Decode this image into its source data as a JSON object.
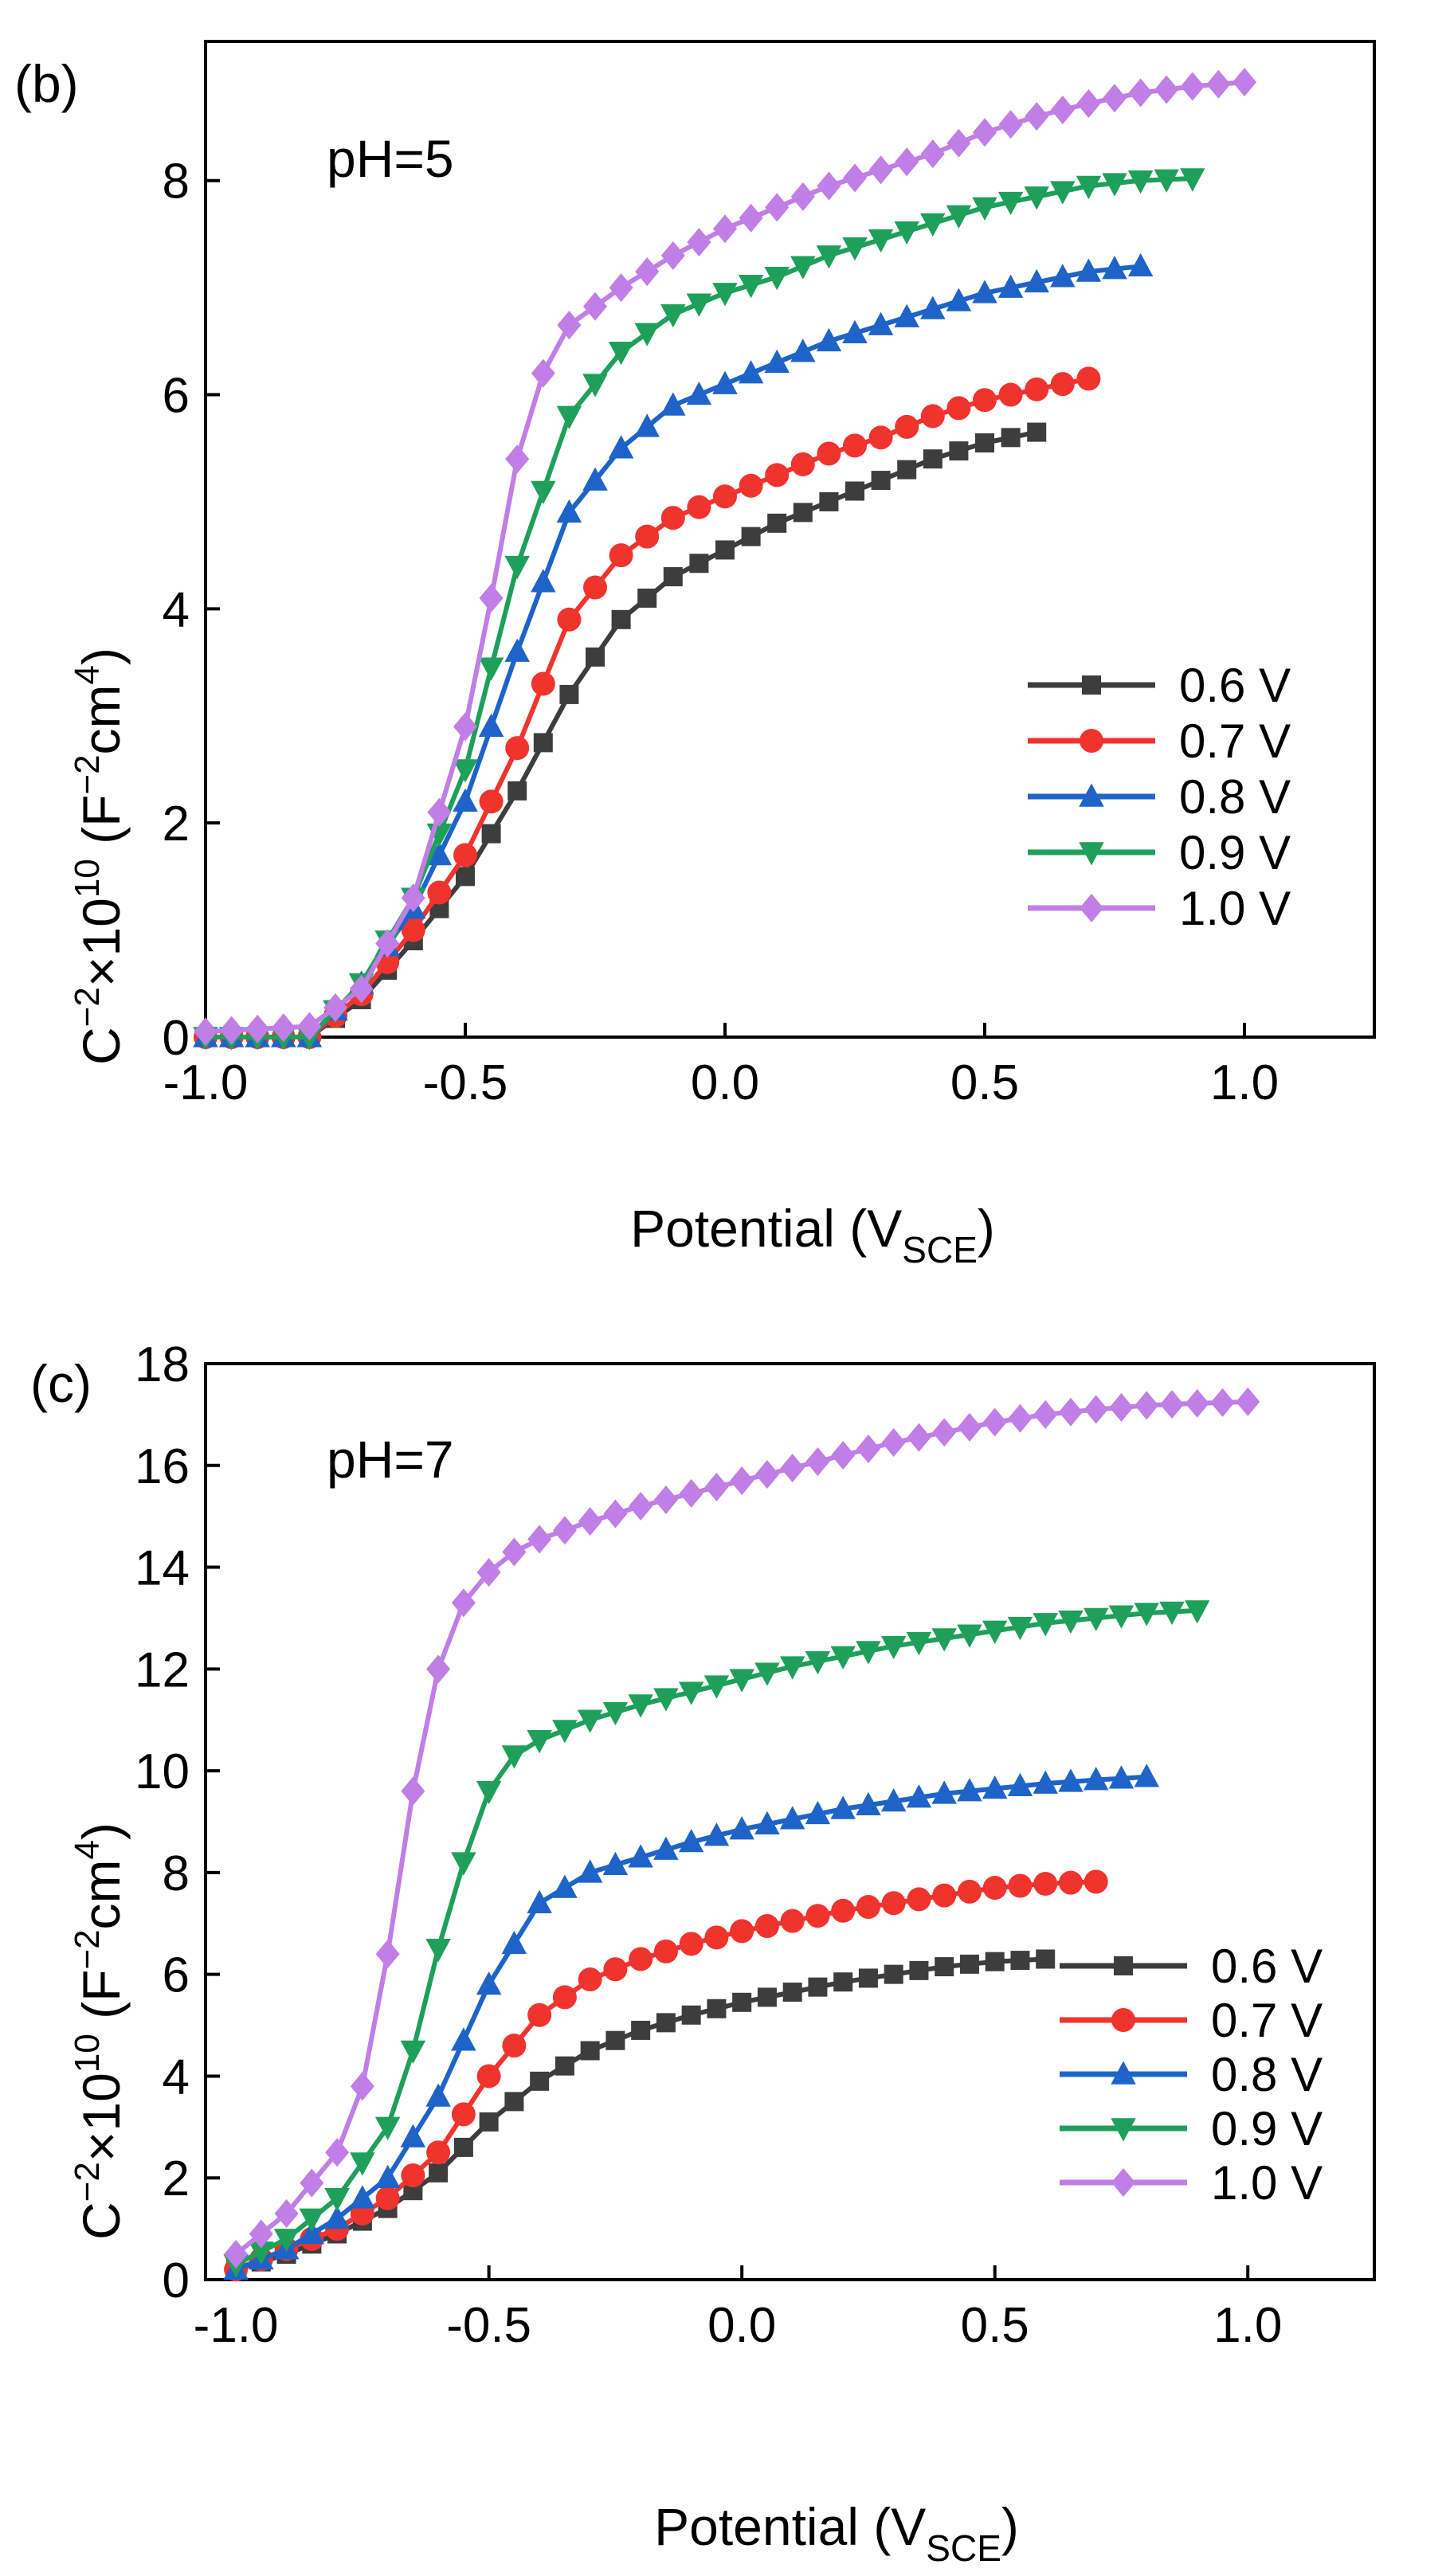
{
  "chart_data": [
    {
      "type": "line",
      "panel_label": "(b)",
      "annotation": "pH=5",
      "xlabel": "Potential (V",
      "xlabel_sub": "SCE",
      "xlabel_end": ")",
      "ylabel_base": "C",
      "ylabel_exp1": "−2",
      "ylabel_mid": "×10",
      "ylabel_exp2": "10",
      "ylabel_unit_open": " (F",
      "ylabel_exp3": "−2",
      "ylabel_unit_mid": "cm",
      "ylabel_exp4": "4",
      "ylabel_unit_close": ")",
      "xlim": [
        -1.0,
        1.25
      ],
      "ylim": [
        0,
        9.3
      ],
      "xticks": [
        -1.0,
        -0.5,
        0.0,
        0.5,
        1.0
      ],
      "xtick_labels": [
        "-1.0",
        "-0.5",
        "0.0",
        "0.5",
        "1.0"
      ],
      "yticks": [
        0,
        2,
        4,
        6,
        8
      ],
      "ytick_labels": [
        "0",
        "2",
        "4",
        "6",
        "8"
      ],
      "legend_position": "bottom-right",
      "series": [
        {
          "name": "0.6 V",
          "color": "#3d3d3d",
          "marker": "square",
          "end": 0.6,
          "points": [
            [
              -1.0,
              0
            ],
            [
              -0.8,
              0
            ],
            [
              -0.7,
              0.35
            ],
            [
              -0.6,
              0.9
            ],
            [
              -0.5,
              1.5
            ],
            [
              -0.4,
              2.3
            ],
            [
              -0.3,
              3.2
            ],
            [
              -0.2,
              3.9
            ],
            [
              -0.1,
              4.3
            ],
            [
              0.0,
              4.55
            ],
            [
              0.1,
              4.8
            ],
            [
              0.2,
              5.0
            ],
            [
              0.3,
              5.2
            ],
            [
              0.4,
              5.4
            ],
            [
              0.5,
              5.55
            ],
            [
              0.6,
              5.65
            ]
          ]
        },
        {
          "name": "0.7 V",
          "color": "#f0332d",
          "marker": "circle",
          "end": 0.7,
          "points": [
            [
              -1.0,
              0
            ],
            [
              -0.8,
              0
            ],
            [
              -0.7,
              0.4
            ],
            [
              -0.6,
              1.0
            ],
            [
              -0.5,
              1.7
            ],
            [
              -0.4,
              2.7
            ],
            [
              -0.3,
              3.9
            ],
            [
              -0.2,
              4.5
            ],
            [
              -0.1,
              4.85
            ],
            [
              0.0,
              5.05
            ],
            [
              0.1,
              5.25
            ],
            [
              0.2,
              5.45
            ],
            [
              0.3,
              5.6
            ],
            [
              0.4,
              5.8
            ],
            [
              0.5,
              5.95
            ],
            [
              0.6,
              6.05
            ],
            [
              0.7,
              6.15
            ]
          ]
        },
        {
          "name": "0.8 V",
          "color": "#1e64c8",
          "marker": "triangle-up",
          "end": 0.8,
          "points": [
            [
              -1.0,
              0
            ],
            [
              -0.8,
              0
            ],
            [
              -0.7,
              0.5
            ],
            [
              -0.6,
              1.2
            ],
            [
              -0.5,
              2.2
            ],
            [
              -0.4,
              3.6
            ],
            [
              -0.3,
              4.9
            ],
            [
              -0.2,
              5.5
            ],
            [
              -0.1,
              5.9
            ],
            [
              0.0,
              6.1
            ],
            [
              0.1,
              6.3
            ],
            [
              0.2,
              6.5
            ],
            [
              0.3,
              6.65
            ],
            [
              0.4,
              6.8
            ],
            [
              0.5,
              6.95
            ],
            [
              0.6,
              7.05
            ],
            [
              0.7,
              7.15
            ],
            [
              0.8,
              7.2
            ]
          ]
        },
        {
          "name": "0.9 V",
          "color": "#1ea05a",
          "marker": "triangle-down",
          "end": 0.9,
          "points": [
            [
              -1.0,
              0
            ],
            [
              -0.8,
              0
            ],
            [
              -0.7,
              0.5
            ],
            [
              -0.6,
              1.3
            ],
            [
              -0.5,
              2.5
            ],
            [
              -0.4,
              4.4
            ],
            [
              -0.3,
              5.8
            ],
            [
              -0.2,
              6.4
            ],
            [
              -0.1,
              6.75
            ],
            [
              0.0,
              6.95
            ],
            [
              0.1,
              7.1
            ],
            [
              0.2,
              7.3
            ],
            [
              0.3,
              7.45
            ],
            [
              0.4,
              7.6
            ],
            [
              0.5,
              7.75
            ],
            [
              0.6,
              7.85
            ],
            [
              0.7,
              7.95
            ],
            [
              0.8,
              8.0
            ],
            [
              0.9,
              8.02
            ]
          ]
        },
        {
          "name": "1.0 V",
          "color": "#c07ee6",
          "marker": "diamond",
          "end": 1.0,
          "points": [
            [
              -1.0,
              0.05
            ],
            [
              -0.8,
              0.1
            ],
            [
              -0.7,
              0.45
            ],
            [
              -0.6,
              1.3
            ],
            [
              -0.5,
              2.9
            ],
            [
              -0.45,
              4.1
            ],
            [
              -0.4,
              5.4
            ],
            [
              -0.35,
              6.2
            ],
            [
              -0.3,
              6.65
            ],
            [
              -0.2,
              7.0
            ],
            [
              -0.1,
              7.3
            ],
            [
              0.0,
              7.55
            ],
            [
              0.1,
              7.75
            ],
            [
              0.2,
              7.95
            ],
            [
              0.3,
              8.1
            ],
            [
              0.4,
              8.25
            ],
            [
              0.5,
              8.45
            ],
            [
              0.6,
              8.6
            ],
            [
              0.7,
              8.72
            ],
            [
              0.8,
              8.82
            ],
            [
              0.9,
              8.88
            ],
            [
              1.0,
              8.92
            ]
          ]
        }
      ]
    },
    {
      "type": "line",
      "panel_label": "(c)",
      "annotation": "pH=7",
      "xlabel": "Potential (V",
      "xlabel_sub": "SCE",
      "xlabel_end": ")",
      "ylabel_base": "C",
      "ylabel_exp1": "−2",
      "ylabel_mid": "×10",
      "ylabel_exp2": "10",
      "ylabel_unit_open": " (F",
      "ylabel_exp3": "−2",
      "ylabel_unit_mid": "cm",
      "ylabel_exp4": "4",
      "ylabel_unit_close": ")",
      "xlim": [
        -1.06,
        1.25
      ],
      "ylim": [
        0,
        18
      ],
      "xticks": [
        -1.0,
        -0.5,
        0.0,
        0.5,
        1.0
      ],
      "xtick_labels": [
        "-1.0",
        "-0.5",
        "0.0",
        "0.5",
        "1.0"
      ],
      "yticks": [
        0,
        2,
        4,
        6,
        8,
        10,
        12,
        14,
        16,
        18
      ],
      "ytick_labels": [
        "0",
        "2",
        "4",
        "6",
        "8",
        "10",
        "12",
        "14",
        "16",
        "18"
      ],
      "legend_position": "bottom-right",
      "series": [
        {
          "name": "0.6 V",
          "color": "#3d3d3d",
          "marker": "square",
          "end": 0.6,
          "points": [
            [
              -1.0,
              0.2
            ],
            [
              -0.9,
              0.5
            ],
            [
              -0.8,
              0.9
            ],
            [
              -0.7,
              1.4
            ],
            [
              -0.6,
              2.1
            ],
            [
              -0.5,
              3.1
            ],
            [
              -0.4,
              3.9
            ],
            [
              -0.3,
              4.5
            ],
            [
              -0.2,
              4.9
            ],
            [
              -0.1,
              5.2
            ],
            [
              0.0,
              5.45
            ],
            [
              0.1,
              5.65
            ],
            [
              0.2,
              5.85
            ],
            [
              0.3,
              6.0
            ],
            [
              0.4,
              6.15
            ],
            [
              0.5,
              6.25
            ],
            [
              0.6,
              6.3
            ]
          ]
        },
        {
          "name": "0.7 V",
          "color": "#f0332d",
          "marker": "circle",
          "end": 0.7,
          "points": [
            [
              -1.0,
              0.2
            ],
            [
              -0.9,
              0.6
            ],
            [
              -0.8,
              1.0
            ],
            [
              -0.7,
              1.6
            ],
            [
              -0.6,
              2.5
            ],
            [
              -0.5,
              4.0
            ],
            [
              -0.4,
              5.2
            ],
            [
              -0.3,
              5.9
            ],
            [
              -0.2,
              6.3
            ],
            [
              -0.1,
              6.6
            ],
            [
              0.0,
              6.85
            ],
            [
              0.1,
              7.05
            ],
            [
              0.2,
              7.25
            ],
            [
              0.3,
              7.4
            ],
            [
              0.4,
              7.55
            ],
            [
              0.5,
              7.7
            ],
            [
              0.6,
              7.78
            ],
            [
              0.7,
              7.82
            ]
          ]
        },
        {
          "name": "0.8 V",
          "color": "#1e64c8",
          "marker": "triangle-up",
          "end": 0.8,
          "points": [
            [
              -1.0,
              0.2
            ],
            [
              -0.9,
              0.6
            ],
            [
              -0.8,
              1.2
            ],
            [
              -0.7,
              2.0
            ],
            [
              -0.6,
              3.6
            ],
            [
              -0.5,
              5.8
            ],
            [
              -0.4,
              7.4
            ],
            [
              -0.3,
              8.0
            ],
            [
              -0.2,
              8.3
            ],
            [
              -0.1,
              8.6
            ],
            [
              0.0,
              8.85
            ],
            [
              0.1,
              9.05
            ],
            [
              0.2,
              9.25
            ],
            [
              0.3,
              9.4
            ],
            [
              0.4,
              9.55
            ],
            [
              0.5,
              9.65
            ],
            [
              0.6,
              9.75
            ],
            [
              0.7,
              9.82
            ],
            [
              0.8,
              9.88
            ]
          ]
        },
        {
          "name": "0.9 V",
          "color": "#1ea05a",
          "marker": "triangle-down",
          "end": 0.9,
          "points": [
            [
              -1.0,
              0.3
            ],
            [
              -0.9,
              0.8
            ],
            [
              -0.8,
              1.6
            ],
            [
              -0.7,
              3.0
            ],
            [
              -0.65,
              4.5
            ],
            [
              -0.6,
              6.5
            ],
            [
              -0.55,
              8.2
            ],
            [
              -0.5,
              9.6
            ],
            [
              -0.45,
              10.3
            ],
            [
              -0.4,
              10.6
            ],
            [
              -0.3,
              11.0
            ],
            [
              -0.2,
              11.3
            ],
            [
              -0.1,
              11.55
            ],
            [
              0.0,
              11.8
            ],
            [
              0.1,
              12.05
            ],
            [
              0.2,
              12.25
            ],
            [
              0.3,
              12.45
            ],
            [
              0.4,
              12.6
            ],
            [
              0.5,
              12.75
            ],
            [
              0.6,
              12.9
            ],
            [
              0.7,
              13.0
            ],
            [
              0.8,
              13.1
            ],
            [
              0.9,
              13.15
            ]
          ]
        },
        {
          "name": "1.0 V",
          "color": "#c07ee6",
          "marker": "diamond",
          "end": 1.0,
          "points": [
            [
              -1.0,
              0.5
            ],
            [
              -0.9,
              1.3
            ],
            [
              -0.8,
              2.5
            ],
            [
              -0.75,
              3.8
            ],
            [
              -0.7,
              6.4
            ],
            [
              -0.65,
              9.6
            ],
            [
              -0.6,
              12.0
            ],
            [
              -0.55,
              13.3
            ],
            [
              -0.5,
              13.9
            ],
            [
              -0.45,
              14.3
            ],
            [
              -0.4,
              14.55
            ],
            [
              -0.3,
              14.9
            ],
            [
              -0.2,
              15.2
            ],
            [
              -0.1,
              15.45
            ],
            [
              0.0,
              15.7
            ],
            [
              0.1,
              15.95
            ],
            [
              0.2,
              16.2
            ],
            [
              0.3,
              16.45
            ],
            [
              0.4,
              16.65
            ],
            [
              0.5,
              16.85
            ],
            [
              0.6,
              17.0
            ],
            [
              0.7,
              17.1
            ],
            [
              0.8,
              17.18
            ],
            [
              0.9,
              17.22
            ],
            [
              1.0,
              17.25
            ]
          ]
        }
      ]
    }
  ]
}
